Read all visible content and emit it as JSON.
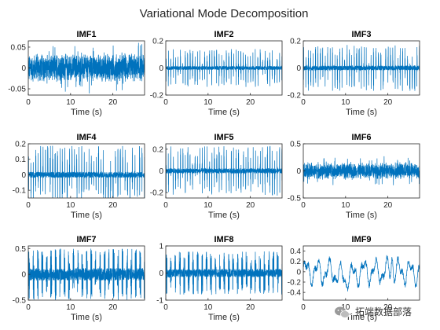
{
  "chart_data": {
    "type": "line",
    "title": "Variational Mode Decomposition",
    "line_color": "#0072bd",
    "xlim": [
      0,
      27.5
    ],
    "panels": [
      {
        "title": "IMF1",
        "xlabel": "Time (s)",
        "xticks": [
          "0",
          "10",
          "20"
        ],
        "ylim": [
          -0.065,
          0.065
        ],
        "yticks": [
          "-0.05",
          "0",
          "0.05"
        ],
        "pattern": "dense_noise",
        "amplitude": 0.062,
        "secondary_amplitude": 0
      },
      {
        "title": "IMF2",
        "xlabel": "Time (s)",
        "xticks": [
          "0",
          "10",
          "20"
        ],
        "ylim": [
          -0.2,
          0.2
        ],
        "yticks": [
          "-0.2",
          "0",
          "0.2"
        ],
        "pattern": "spikes",
        "amplitude": 0.14,
        "secondary_amplitude": 0
      },
      {
        "title": "IMF3",
        "xlabel": "Time (s)",
        "xticks": [
          "0",
          "10",
          "20"
        ],
        "ylim": [
          -0.2,
          0.2
        ],
        "yticks": [
          "-0.2",
          "0",
          "0.2"
        ],
        "pattern": "spikes",
        "amplitude": 0.17,
        "secondary_amplitude": 0
      },
      {
        "title": "IMF4",
        "xlabel": "Time (s)",
        "xticks": [
          "0",
          "10",
          "20"
        ],
        "ylim": [
          -0.15,
          0.2
        ],
        "yticks": [
          "-0.1",
          "0",
          "0.1",
          "0.2"
        ],
        "pattern": "spikes",
        "amplitude": 0.19,
        "secondary_amplitude": 0
      },
      {
        "title": "IMF5",
        "xlabel": "Time (s)",
        "xticks": [
          "0",
          "10",
          "20"
        ],
        "ylim": [
          -0.25,
          0.25
        ],
        "yticks": [
          "-0.2",
          "0",
          "0.2"
        ],
        "pattern": "spikes",
        "amplitude": 0.23,
        "secondary_amplitude": 0
      },
      {
        "title": "IMF6",
        "xlabel": "Time (s)",
        "xticks": [
          "0",
          "10",
          "20"
        ],
        "ylim": [
          -0.5,
          0.5
        ],
        "yticks": [
          "-0.5",
          "0",
          "0.5"
        ],
        "pattern": "dense_noise",
        "amplitude": 0.28,
        "secondary_amplitude": 0
      },
      {
        "title": "IMF7",
        "xlabel": "Time (s)",
        "xticks": [
          "0",
          "10",
          "20"
        ],
        "ylim": [
          -0.5,
          0.55
        ],
        "yticks": [
          "-0.5",
          "0",
          "0.5"
        ],
        "pattern": "bursts",
        "amplitude": 0.5,
        "secondary_amplitude": 0.12
      },
      {
        "title": "IMF8",
        "xlabel": "Time (s)",
        "xticks": [
          "0",
          "10",
          "20"
        ],
        "ylim": [
          -1,
          1
        ],
        "yticks": [
          "-1",
          "0",
          "1"
        ],
        "pattern": "bursts",
        "amplitude": 0.8,
        "secondary_amplitude": 0.15
      },
      {
        "title": "IMF9",
        "xlabel": "Time (s)",
        "xticks": [
          "0",
          "10",
          "20"
        ],
        "ylim": [
          -0.55,
          0.5
        ],
        "yticks": [
          "-0.4",
          "-0.2",
          "0",
          "0.2",
          "0.4"
        ],
        "pattern": "slow_wave",
        "amplitude": 0.5,
        "secondary_amplitude": 0.3
      }
    ]
  },
  "watermark": {
    "text": "拓端数据部落",
    "icon": "wechat-icon"
  }
}
